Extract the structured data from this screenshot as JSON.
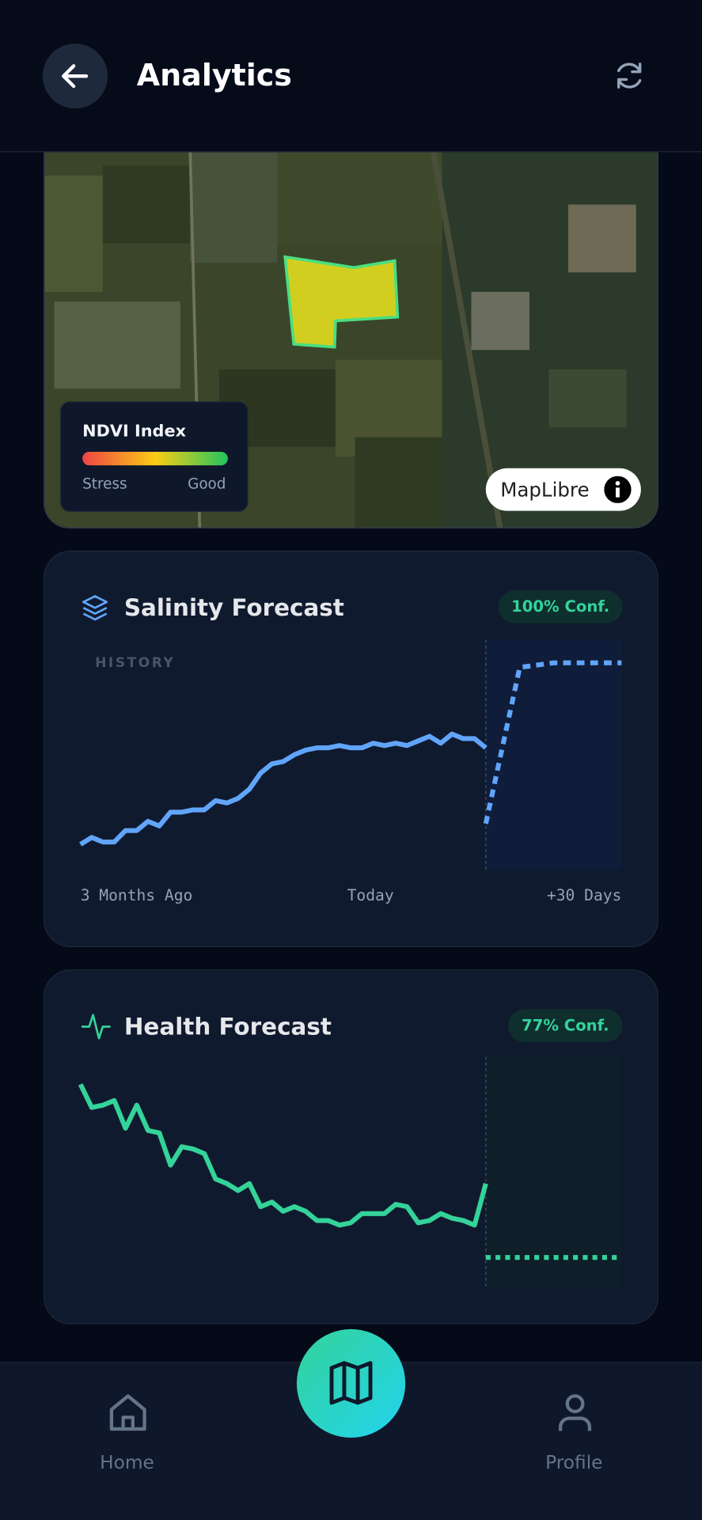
{
  "header": {
    "title": "Analytics"
  },
  "map": {
    "legend_title": "NDVI Index",
    "legend_low": "Stress",
    "legend_high": "Good",
    "attribution": "MapLibre"
  },
  "salinity": {
    "title": "Salinity Forecast",
    "confidence": "100% Conf.",
    "history_label": "HISTORY",
    "x_labels": [
      "3 Months Ago",
      "Today",
      "+30 Days"
    ],
    "color": "#60a5fa",
    "ylim": [
      0,
      100
    ],
    "history": [
      11,
      14,
      12,
      12,
      17,
      17,
      21,
      19,
      25,
      25,
      26,
      26,
      30,
      29,
      31,
      35,
      42,
      46,
      47,
      50,
      52,
      53,
      53,
      54,
      53,
      53,
      55,
      54,
      55,
      54,
      56,
      58,
      55,
      59,
      57,
      57,
      53
    ],
    "forecast": [
      20,
      88,
      90,
      90,
      90
    ]
  },
  "health": {
    "title": "Health Forecast",
    "confidence": "77% Conf.",
    "color": "#34d399",
    "ylim": [
      0,
      100
    ],
    "history": [
      88,
      78,
      79,
      81,
      69,
      79,
      68,
      67,
      53,
      61,
      60,
      58,
      47,
      45,
      42,
      45,
      35,
      37,
      33,
      35,
      33,
      29,
      29,
      27,
      28,
      32,
      32,
      32,
      36,
      35,
      28,
      29,
      32,
      30,
      29,
      27,
      45
    ],
    "forecast": [
      13,
      13,
      13,
      13,
      13
    ]
  },
  "nav": {
    "items": [
      "Home",
      "Profile"
    ]
  }
}
